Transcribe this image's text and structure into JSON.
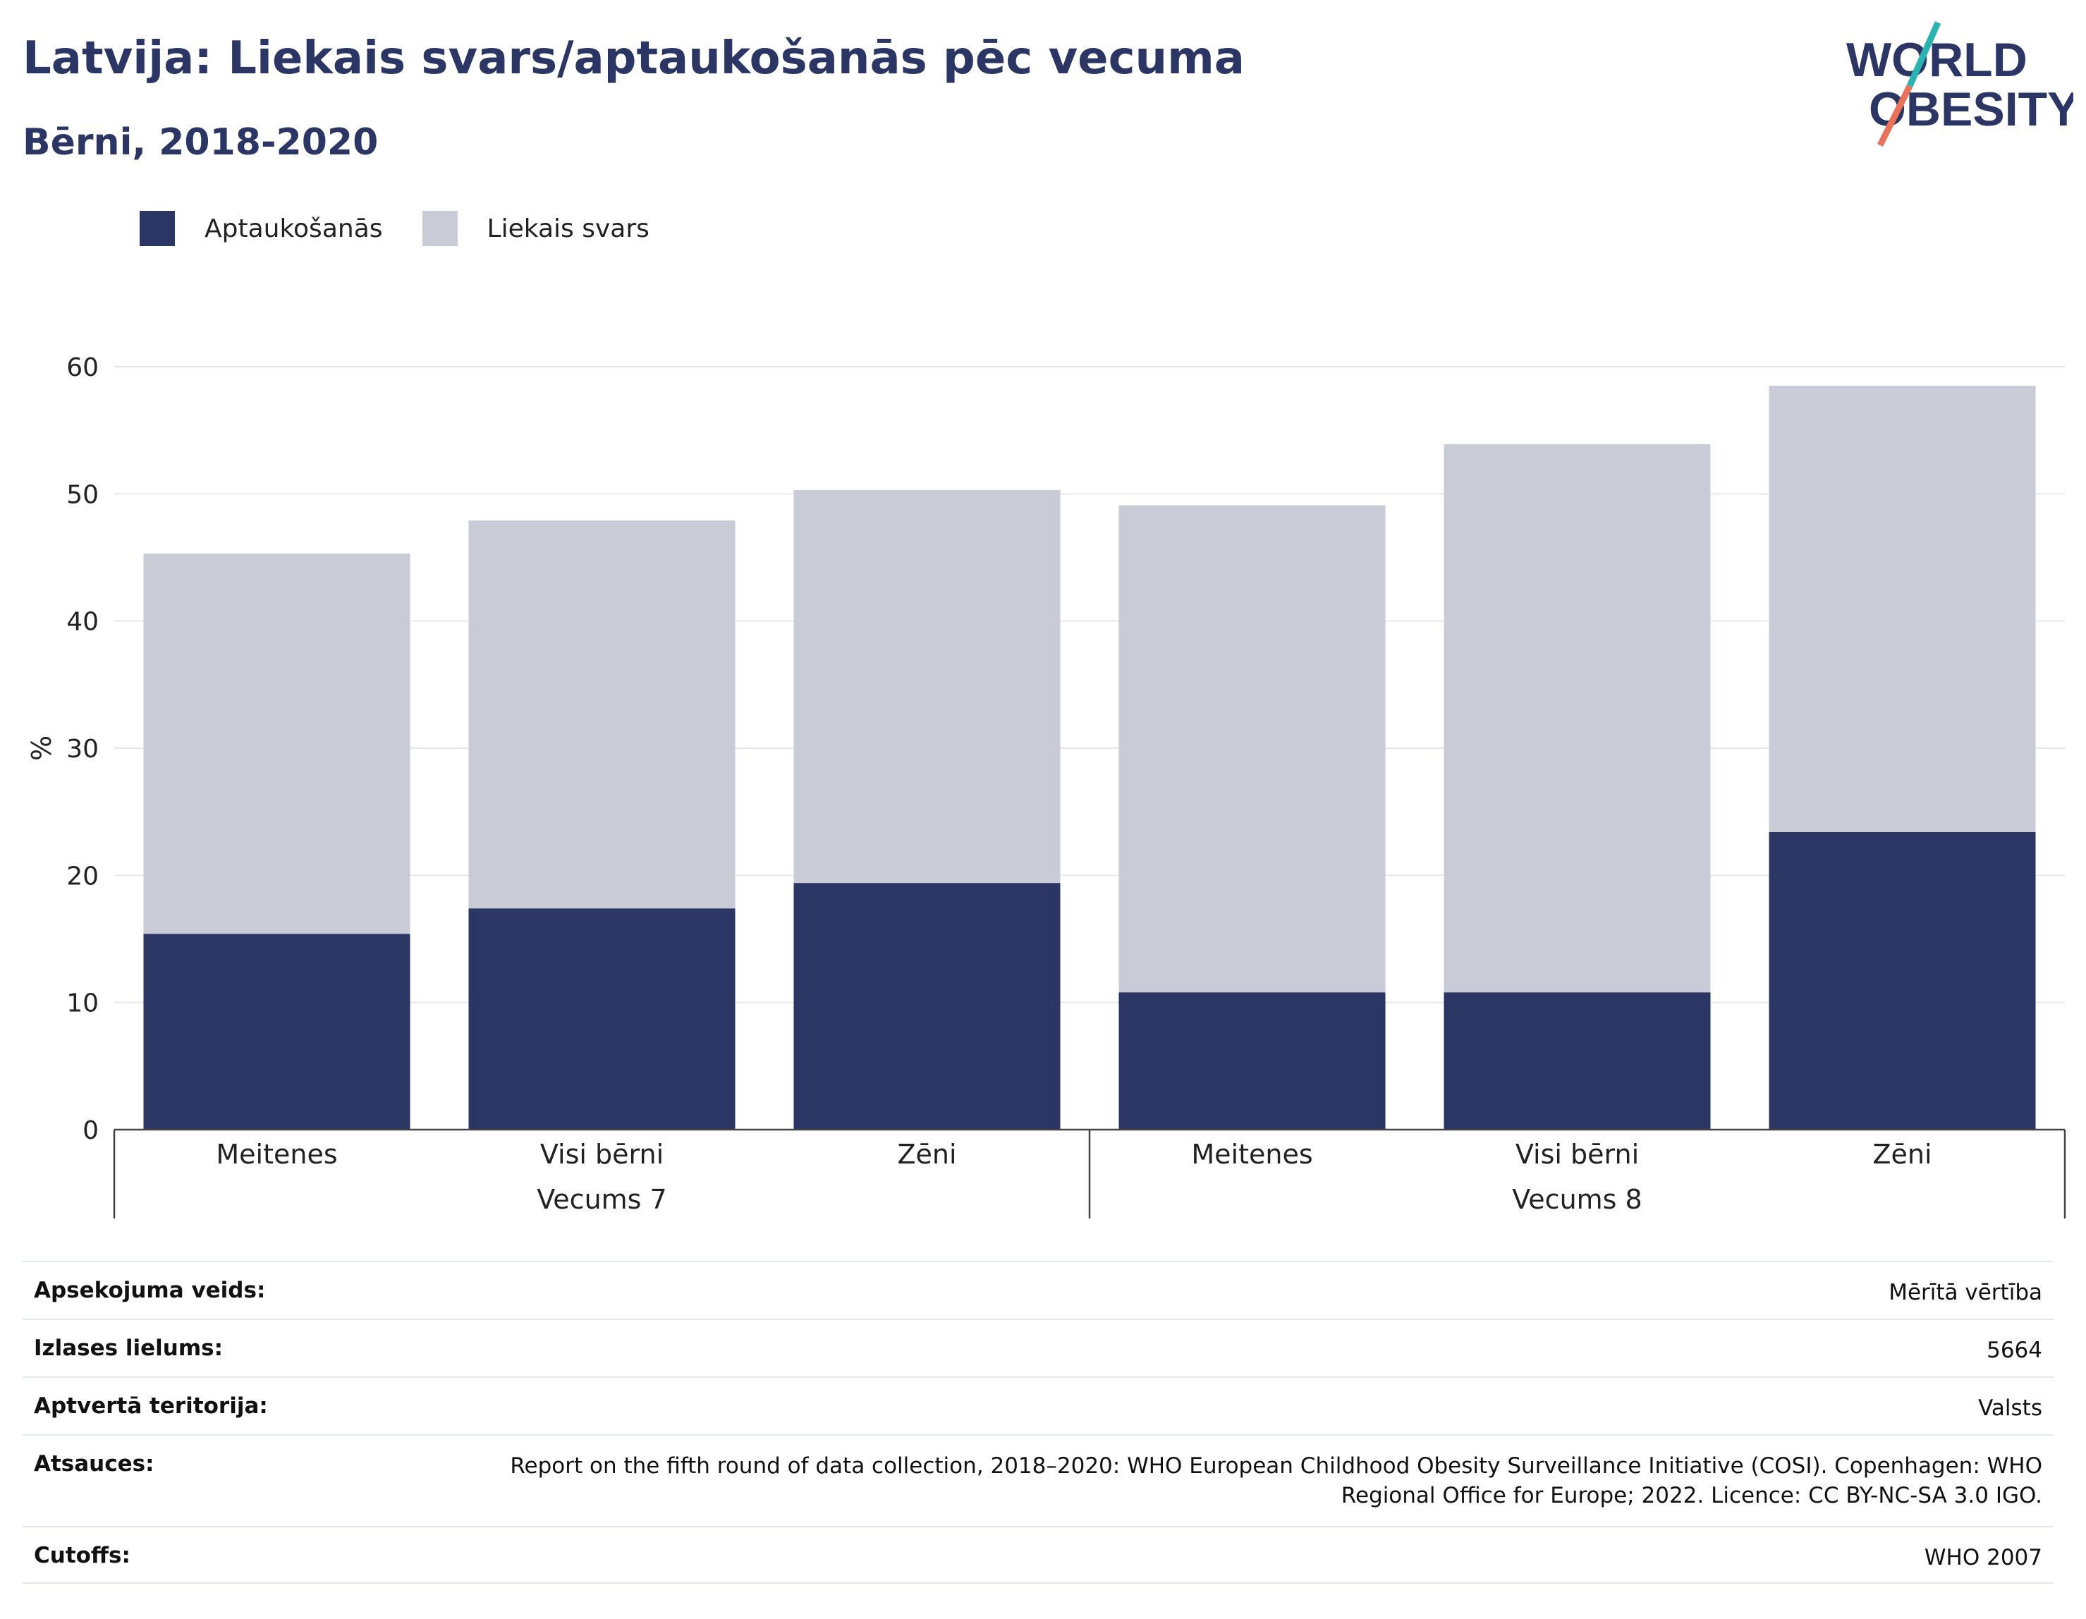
{
  "header": {
    "title": "Latvija: Liekais svars/aptaukošanās pēc vecuma",
    "subtitle": "Bērni, 2018-2020"
  },
  "logo": {
    "line1": "WORLD",
    "line2": "OBESITY"
  },
  "colors": {
    "obesity": "#2b3664",
    "overweight": "#c9cbd7",
    "title": "#2b3664",
    "grid": "#e6e8ef",
    "logo_teal": "#2bb3b1",
    "logo_coral": "#e8735a"
  },
  "chart_data": {
    "type": "bar",
    "stacked": true,
    "ylabel": "%",
    "ylim": [
      0,
      60
    ],
    "yticks": [
      0,
      10,
      20,
      30,
      40,
      50,
      60
    ],
    "grid": true,
    "legend_position": "top-left",
    "categories": [
      "Meitenes",
      "Visi bērni",
      "Zēni",
      "Meitenes",
      "Visi bērni",
      "Zēni"
    ],
    "groups": [
      {
        "label": "Vecums 7",
        "indices": [
          0,
          1,
          2
        ]
      },
      {
        "label": "Vecums 8",
        "indices": [
          3,
          4,
          5
        ]
      }
    ],
    "series": [
      {
        "name": "Aptaukošanās",
        "values": [
          15.4,
          17.4,
          19.4,
          10.8,
          10.8,
          23.4
        ]
      },
      {
        "name": "Liekais svars",
        "values": [
          29.9,
          30.5,
          30.9,
          38.3,
          43.1,
          35.1
        ]
      }
    ]
  },
  "meta": [
    {
      "label": "Apsekojuma veids:",
      "value": "Mērītā vērtība"
    },
    {
      "label": "Izlases lielums:",
      "value": "5664"
    },
    {
      "label": "Aptvertā teritorija:",
      "value": "Valsts"
    },
    {
      "label": "Atsauces:",
      "value": "Report on the fifth round of data collection, 2018–2020: WHO European Childhood Obesity Surveillance Initiative (COSI). Copenhagen: WHO Regional Office for Europe; 2022. Licence: CC BY-NC-SA 3.0 IGO."
    },
    {
      "label": "Cutoffs:",
      "value": "WHO 2007"
    }
  ]
}
